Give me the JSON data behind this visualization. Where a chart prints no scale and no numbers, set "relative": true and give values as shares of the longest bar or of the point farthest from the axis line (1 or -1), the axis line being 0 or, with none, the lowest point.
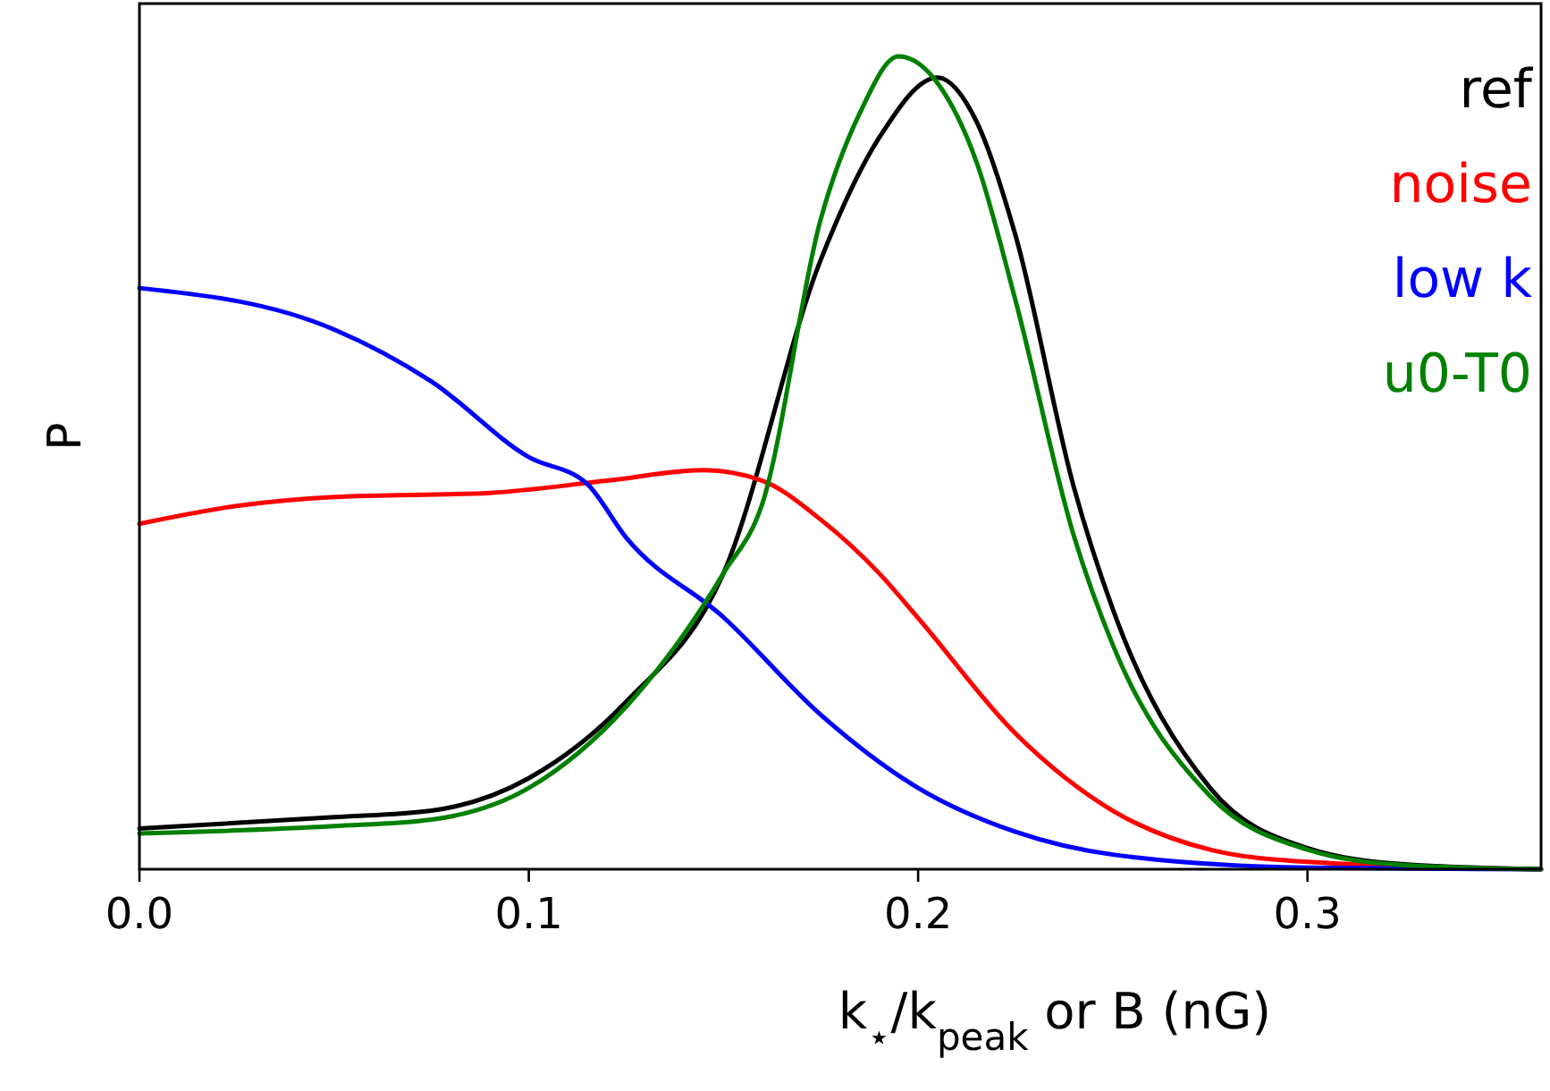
{
  "chart_data": {
    "type": "line",
    "relative": true,
    "xlabel": "k$_{⋆}$/k$_{peak}$ or B (nG)",
    "ylabel": "P",
    "xlim": [
      0,
      0.36
    ],
    "xticks": [
      {
        "value": 0,
        "label": "0.0"
      },
      0.1,
      0.2,
      0.3
    ],
    "tick_labels": "x",
    "grid": false,
    "legend": "top right",
    "marker": "none",
    "line_style": "solid",
    "series": [
      {
        "name": "ref",
        "color": "#000000",
        "x": [
          0,
          0.05,
          0.075,
          0.1,
          0.125,
          0.15,
          0.175,
          0.19,
          0.205,
          0.215,
          0.225,
          0.24,
          0.25,
          0.275,
          0.3,
          0.325,
          0.36
        ],
        "values": [
          0.05,
          0.064,
          0.072,
          0.112,
          0.206,
          0.364,
          0.75,
          0.9,
          0.974,
          0.92,
          0.78,
          0.47,
          0.32,
          0.1,
          0.026,
          0.006,
          0
        ]
      },
      {
        "name": "noise",
        "color": "#ff0000",
        "x": [
          0,
          0.025,
          0.05,
          0.09,
          0.12,
          0.145,
          0.16,
          0.175,
          0.19,
          0.2,
          0.225,
          0.25,
          0.275,
          0.3,
          0.36
        ],
        "values": [
          0.425,
          0.447,
          0.458,
          0.463,
          0.478,
          0.491,
          0.478,
          0.43,
          0.364,
          0.309,
          0.167,
          0.072,
          0.024,
          0.009,
          0
        ]
      },
      {
        "name": "low k",
        "color": "#0000ff",
        "x": [
          0,
          0.05,
          0.075,
          0.1,
          0.115,
          0.125,
          0.15,
          0.175,
          0.2,
          0.225,
          0.25,
          0.3,
          0.36
        ],
        "values": [
          0.715,
          0.664,
          0.6,
          0.507,
          0.474,
          0.408,
          0.31,
          0.19,
          0.1,
          0.046,
          0.018,
          0.002,
          0
        ]
      },
      {
        "name": "u0-T0",
        "color": "#008000",
        "x": [
          0,
          0.05,
          0.075,
          0.1,
          0.125,
          0.15,
          0.16,
          0.175,
          0.185,
          0.195,
          0.205,
          0.215,
          0.225,
          0.24,
          0.25,
          0.275,
          0.3,
          0.325,
          0.36
        ],
        "values": [
          0.044,
          0.053,
          0.061,
          0.1,
          0.2,
          0.364,
          0.45,
          0.8,
          0.93,
          1,
          0.967,
          0.87,
          0.7,
          0.41,
          0.276,
          0.09,
          0.024,
          0.005,
          0
        ]
      }
    ]
  }
}
